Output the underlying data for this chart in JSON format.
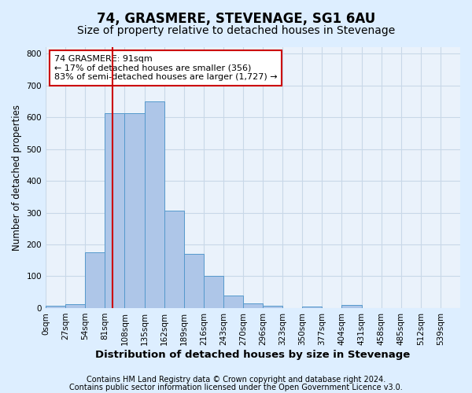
{
  "title": "74, GRASMERE, STEVENAGE, SG1 6AU",
  "subtitle": "Size of property relative to detached houses in Stevenage",
  "xlabel": "Distribution of detached houses by size in Stevenage",
  "ylabel": "Number of detached properties",
  "footer_line1": "Contains HM Land Registry data © Crown copyright and database right 2024.",
  "footer_line2": "Contains public sector information licensed under the Open Government Licence v3.0.",
  "bin_labels": [
    "0sqm",
    "27sqm",
    "54sqm",
    "81sqm",
    "108sqm",
    "135sqm",
    "162sqm",
    "189sqm",
    "216sqm",
    "243sqm",
    "270sqm",
    "296sqm",
    "323sqm",
    "350sqm",
    "377sqm",
    "404sqm",
    "431sqm",
    "458sqm",
    "485sqm",
    "512sqm",
    "539sqm"
  ],
  "bar_values": [
    8,
    13,
    175,
    612,
    612,
    650,
    305,
    170,
    100,
    40,
    15,
    8,
    0,
    5,
    0,
    10,
    0,
    0,
    0,
    0,
    0
  ],
  "bar_color": "#aec6e8",
  "bar_edge_color": "#5599cc",
  "vline_color": "#cc0000",
  "annotation_text": "74 GRASMERE: 91sqm\n← 17% of detached houses are smaller (356)\n83% of semi-detached houses are larger (1,727) →",
  "annotation_box_color": "#ffffff",
  "annotation_box_edge_color": "#cc0000",
  "ylim": [
    0,
    820
  ],
  "yticks": [
    0,
    100,
    200,
    300,
    400,
    500,
    600,
    700,
    800
  ],
  "grid_color": "#c8d8e8",
  "bg_color": "#ddeeff",
  "plot_bg_color": "#eaf2fb",
  "title_fontsize": 12,
  "subtitle_fontsize": 10,
  "xlabel_fontsize": 9.5,
  "ylabel_fontsize": 8.5,
  "tick_fontsize": 7.5,
  "footer_fontsize": 7,
  "annot_fontsize": 8
}
